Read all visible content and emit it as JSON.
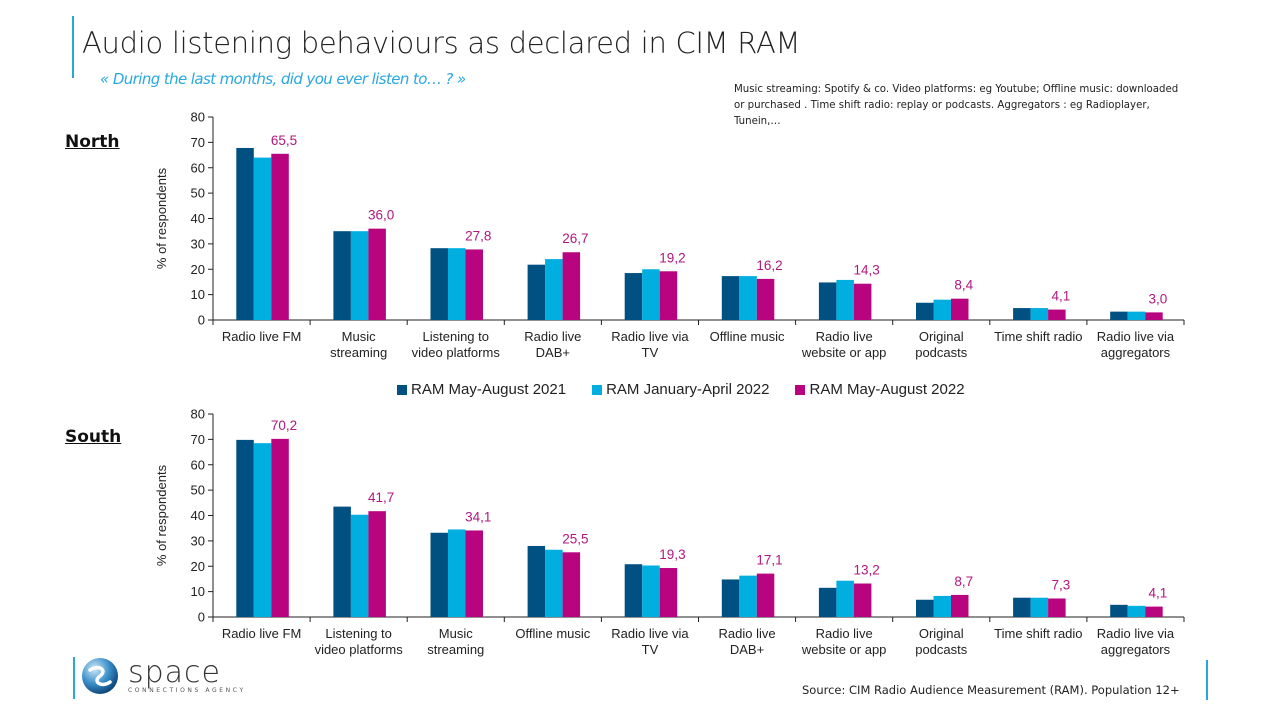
{
  "title": "Audio listening behaviours as declared in CIM RAM",
  "subtitle": "« During the last months, did you ever listen to… ? »",
  "note": "Music streaming: Spotify & co. Video platforms: eg Youtube; Offline music: downloaded or purchased . Time shift radio: replay or podcasts. Aggregators : eg Radioplayer, Tunein,…",
  "source": "Source: CIM Radio Audience Measurement (RAM). Population 12+",
  "logo": {
    "word": "space",
    "tagline": "CONNECTIONS AGENCY"
  },
  "colors": {
    "series_2021": "#005082",
    "series_jan2022": "#00aee0",
    "series_may2022": "#b8047e",
    "label": "#b0187e",
    "accent": "#29a8d6"
  },
  "legend": [
    {
      "label": "RAM May-August 2021",
      "color": "#005082"
    },
    {
      "label": "RAM January-April 2022",
      "color": "#00aee0"
    },
    {
      "label": "RAM May-August 2022",
      "color": "#b8047e"
    }
  ],
  "chart_data": [
    {
      "type": "bar",
      "title": "North",
      "ylabel": "% of respondents",
      "ylim": [
        0,
        80
      ],
      "yticks": [
        0,
        10,
        20,
        30,
        40,
        50,
        60,
        70,
        80
      ],
      "categories": [
        [
          "Radio live FM"
        ],
        [
          "Music",
          "streaming"
        ],
        [
          "Listening to",
          "video platforms"
        ],
        [
          "Radio live",
          "DAB+"
        ],
        [
          "Radio live via",
          "TV"
        ],
        [
          "Offline music"
        ],
        [
          "Radio live",
          "website or app"
        ],
        [
          "Original",
          "podcasts"
        ],
        [
          "Time shift radio"
        ],
        [
          "Radio live via",
          "aggregators"
        ]
      ],
      "series": [
        {
          "name": "RAM May-August 2021",
          "values": [
            67.8,
            35.0,
            28.3,
            21.8,
            18.5,
            17.3,
            14.8,
            6.8,
            4.7,
            3.3
          ]
        },
        {
          "name": "RAM January-April 2022",
          "values": [
            64.0,
            35.0,
            28.3,
            24.0,
            20.0,
            17.3,
            15.8,
            8.0,
            4.7,
            3.3
          ]
        },
        {
          "name": "RAM May-August 2022",
          "values": [
            65.5,
            36.0,
            27.8,
            26.7,
            19.2,
            16.2,
            14.3,
            8.4,
            4.1,
            3.0
          ]
        }
      ],
      "data_labels": [
        "65,5",
        "36,0",
        "27,8",
        "26,7",
        "19,2",
        "16,2",
        "14,3",
        "8,4",
        "4,1",
        "3,0"
      ],
      "legend": "bottom-center",
      "grid": false
    },
    {
      "type": "bar",
      "title": "South",
      "ylabel": "% of respondents",
      "ylim": [
        0,
        80
      ],
      "yticks": [
        0,
        10,
        20,
        30,
        40,
        50,
        60,
        70,
        80
      ],
      "categories": [
        [
          "Radio live FM"
        ],
        [
          "Listening to",
          "video platforms"
        ],
        [
          "Music",
          "streaming"
        ],
        [
          "Offline music"
        ],
        [
          "Radio live via",
          "TV"
        ],
        [
          "Radio live",
          "DAB+"
        ],
        [
          "Radio live",
          "website or app"
        ],
        [
          "Original",
          "podcasts"
        ],
        [
          "Time shift radio"
        ],
        [
          "Radio live via",
          "aggregators"
        ]
      ],
      "series": [
        {
          "name": "RAM May-August 2021",
          "values": [
            69.8,
            43.5,
            33.2,
            28.0,
            20.8,
            14.8,
            11.5,
            6.8,
            7.6,
            4.8
          ]
        },
        {
          "name": "RAM January-April 2022",
          "values": [
            68.5,
            40.3,
            34.5,
            26.5,
            20.3,
            16.3,
            14.3,
            8.3,
            7.6,
            4.4
          ]
        },
        {
          "name": "RAM May-August 2022",
          "values": [
            70.2,
            41.7,
            34.1,
            25.5,
            19.3,
            17.1,
            13.2,
            8.7,
            7.3,
            4.1
          ]
        }
      ],
      "data_labels": [
        "70,2",
        "41,7",
        "34,1",
        "25,5",
        "19,3",
        "17,1",
        "13,2",
        "8,7",
        "7,3",
        "4,1"
      ],
      "legend": "none",
      "grid": false
    }
  ]
}
